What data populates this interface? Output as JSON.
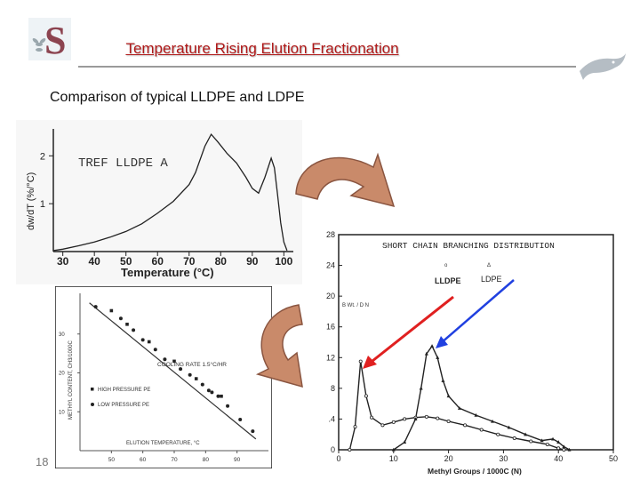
{
  "slide": {
    "title": "Temperature Rising Elution Fractionation",
    "subtitle": "Comparison of typical LLDPE and LDPE",
    "page_number": "18",
    "colors": {
      "title": "#b01818",
      "arrow_fill": "#c98a6a",
      "red_arrow": "#e02020",
      "blue_arrow": "#2040e0"
    },
    "icons": [
      "sasol-logo-icon",
      "fish-logo-icon"
    ]
  },
  "chart_data": [
    {
      "type": "line",
      "title": "TREF LLDPE A",
      "xlabel": "Temperature (°C)",
      "ylabel": "dw/dT (%/°C)",
      "xlim": [
        27,
        103
      ],
      "ylim": [
        0,
        2.6
      ],
      "x_ticks": [
        "30",
        "40",
        "50",
        "60",
        "70",
        "80",
        "90",
        "100"
      ],
      "y_ticks": [
        "1",
        "2"
      ],
      "series": [
        {
          "values": [
            [
              27,
              0.02
            ],
            [
              30,
              0.05
            ],
            [
              35,
              0.12
            ],
            [
              40,
              0.2
            ],
            [
              45,
              0.3
            ],
            [
              50,
              0.42
            ],
            [
              55,
              0.58
            ],
            [
              60,
              0.8
            ],
            [
              65,
              1.05
            ],
            [
              70,
              1.4
            ],
            [
              72,
              1.65
            ],
            [
              75,
              2.2
            ],
            [
              77,
              2.45
            ],
            [
              79,
              2.3
            ],
            [
              82,
              2.05
            ],
            [
              85,
              1.85
            ],
            [
              88,
              1.55
            ],
            [
              90,
              1.32
            ],
            [
              92,
              1.22
            ],
            [
              94,
              1.55
            ],
            [
              96,
              1.95
            ],
            [
              97,
              1.75
            ],
            [
              98,
              1.2
            ],
            [
              99,
              0.6
            ],
            [
              100,
              0.2
            ],
            [
              101,
              0.02
            ]
          ]
        }
      ]
    },
    {
      "type": "scatter",
      "xlabel": "ELUTION TEMPERATURE, °C",
      "ylabel": "METHYL CONTENT, CH3/1000C",
      "xlim": [
        40,
        100
      ],
      "ylim": [
        0,
        40
      ],
      "x_ticks": [
        "50",
        "60",
        "70",
        "80",
        "90"
      ],
      "y_ticks": [
        "10",
        "20",
        "30"
      ],
      "annotation": "COOLING RATE 1.5°C/HR",
      "legend": [
        "HIGH PRESSURE PE",
        "LOW PRESSURE PE"
      ],
      "series": [
        {
          "name": "HIGH PRESSURE PE",
          "values": [
            [
              50,
              36
            ],
            [
              55,
              32.5
            ],
            [
              62,
              28
            ],
            [
              70,
              23
            ],
            [
              77,
              18.5
            ],
            [
              85,
              14
            ]
          ]
        },
        {
          "name": "LOW PRESSURE PE",
          "values": [
            [
              45,
              37
            ],
            [
              53,
              34
            ],
            [
              57,
              31
            ],
            [
              60,
              28.5
            ],
            [
              64,
              26
            ],
            [
              67,
              23.5
            ],
            [
              72,
              21
            ],
            [
              75,
              19.5
            ],
            [
              79,
              17
            ],
            [
              81,
              15.5
            ],
            [
              82,
              15
            ],
            [
              84,
              14
            ],
            [
              87,
              11.5
            ],
            [
              91,
              8
            ],
            [
              95,
              5
            ]
          ]
        }
      ],
      "fit_line": [
        [
          43,
          38
        ],
        [
          96,
          3
        ]
      ]
    },
    {
      "type": "line",
      "title": "SHORT CHAIN BRANCHING DISTRIBUTION",
      "xlabel": "Methyl Groups / 1000C (N)",
      "ylabel": "B Wt. / D N",
      "xlim": [
        0,
        50
      ],
      "ylim": [
        0,
        28
      ],
      "x_ticks": [
        "0",
        "10",
        "20",
        "30",
        "40",
        "50"
      ],
      "y_ticks": [
        "0",
        ".4",
        "8",
        "12",
        "16",
        "20",
        "24",
        "28"
      ],
      "series": [
        {
          "name": "LLDPE",
          "values": [
            [
              2,
              0
            ],
            [
              3,
              3
            ],
            [
              4,
              11.5
            ],
            [
              5,
              7
            ],
            [
              6,
              4.2
            ],
            [
              8,
              3.2
            ],
            [
              10,
              3.6
            ],
            [
              12,
              4
            ],
            [
              14,
              4.2
            ],
            [
              16,
              4.3
            ],
            [
              18,
              4.1
            ],
            [
              20,
              3.7
            ],
            [
              23,
              3.2
            ],
            [
              26,
              2.6
            ],
            [
              29,
              2
            ],
            [
              32,
              1.5
            ],
            [
              35,
              1.1
            ],
            [
              38,
              0.7
            ],
            [
              40,
              0.2
            ],
            [
              41,
              0
            ]
          ]
        },
        {
          "name": "LDPE",
          "values": [
            [
              10,
              0
            ],
            [
              12,
              1
            ],
            [
              14,
              4
            ],
            [
              15,
              8
            ],
            [
              16,
              12.5
            ],
            [
              17,
              13.5
            ],
            [
              18,
              12
            ],
            [
              19,
              9
            ],
            [
              20,
              7
            ],
            [
              22,
              5.4
            ],
            [
              25,
              4.5
            ],
            [
              28,
              3.7
            ],
            [
              31,
              2.9
            ],
            [
              34,
              2
            ],
            [
              37,
              1.2
            ],
            [
              39,
              1.4
            ],
            [
              40,
              1
            ],
            [
              41,
              0.4
            ],
            [
              42,
              0
            ]
          ]
        }
      ]
    }
  ]
}
